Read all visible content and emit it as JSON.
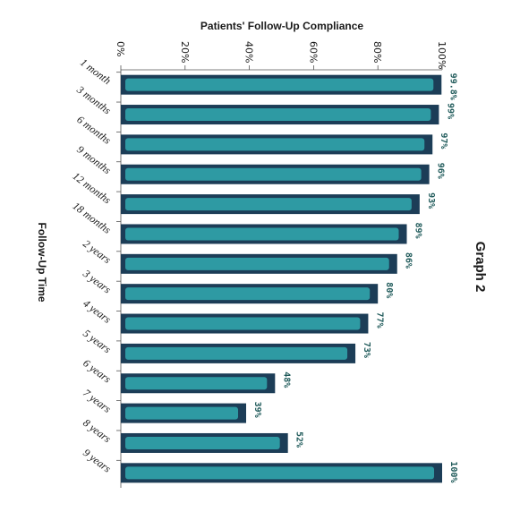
{
  "chart_data": {
    "type": "bar",
    "orientation": "horizontal",
    "title": "Patients' Follow-Up Compliance",
    "side_title": "Graph 2",
    "ylabel": "Follow-Up Time",
    "xlabel": "",
    "xlim": [
      0,
      100
    ],
    "x_ticks": [
      "0%",
      "20%",
      "40%",
      "60%",
      "80%",
      "100%"
    ],
    "categories": [
      "1 month",
      "3 months",
      "6 months",
      "9 months",
      "12 months",
      "18 months",
      "2 years",
      "3 years",
      "4 years",
      "5 years",
      "6 years",
      "7 years",
      "8 years",
      "9 years"
    ],
    "values": [
      99.8,
      99,
      97,
      96,
      93,
      89,
      86,
      80,
      77,
      73,
      48,
      39,
      52,
      100
    ],
    "data_labels": [
      "99.8%",
      "99%",
      "97%",
      "96%",
      "93%",
      "89%",
      "86%",
      "80%",
      "77%",
      "73%",
      "48%",
      "39%",
      "52%",
      "100%"
    ],
    "grid": false,
    "legend": "none",
    "colors": {
      "bar_outer": "#1c3d57",
      "bar_inner": "#2e9aa3",
      "label": "#1f5a5a"
    }
  }
}
